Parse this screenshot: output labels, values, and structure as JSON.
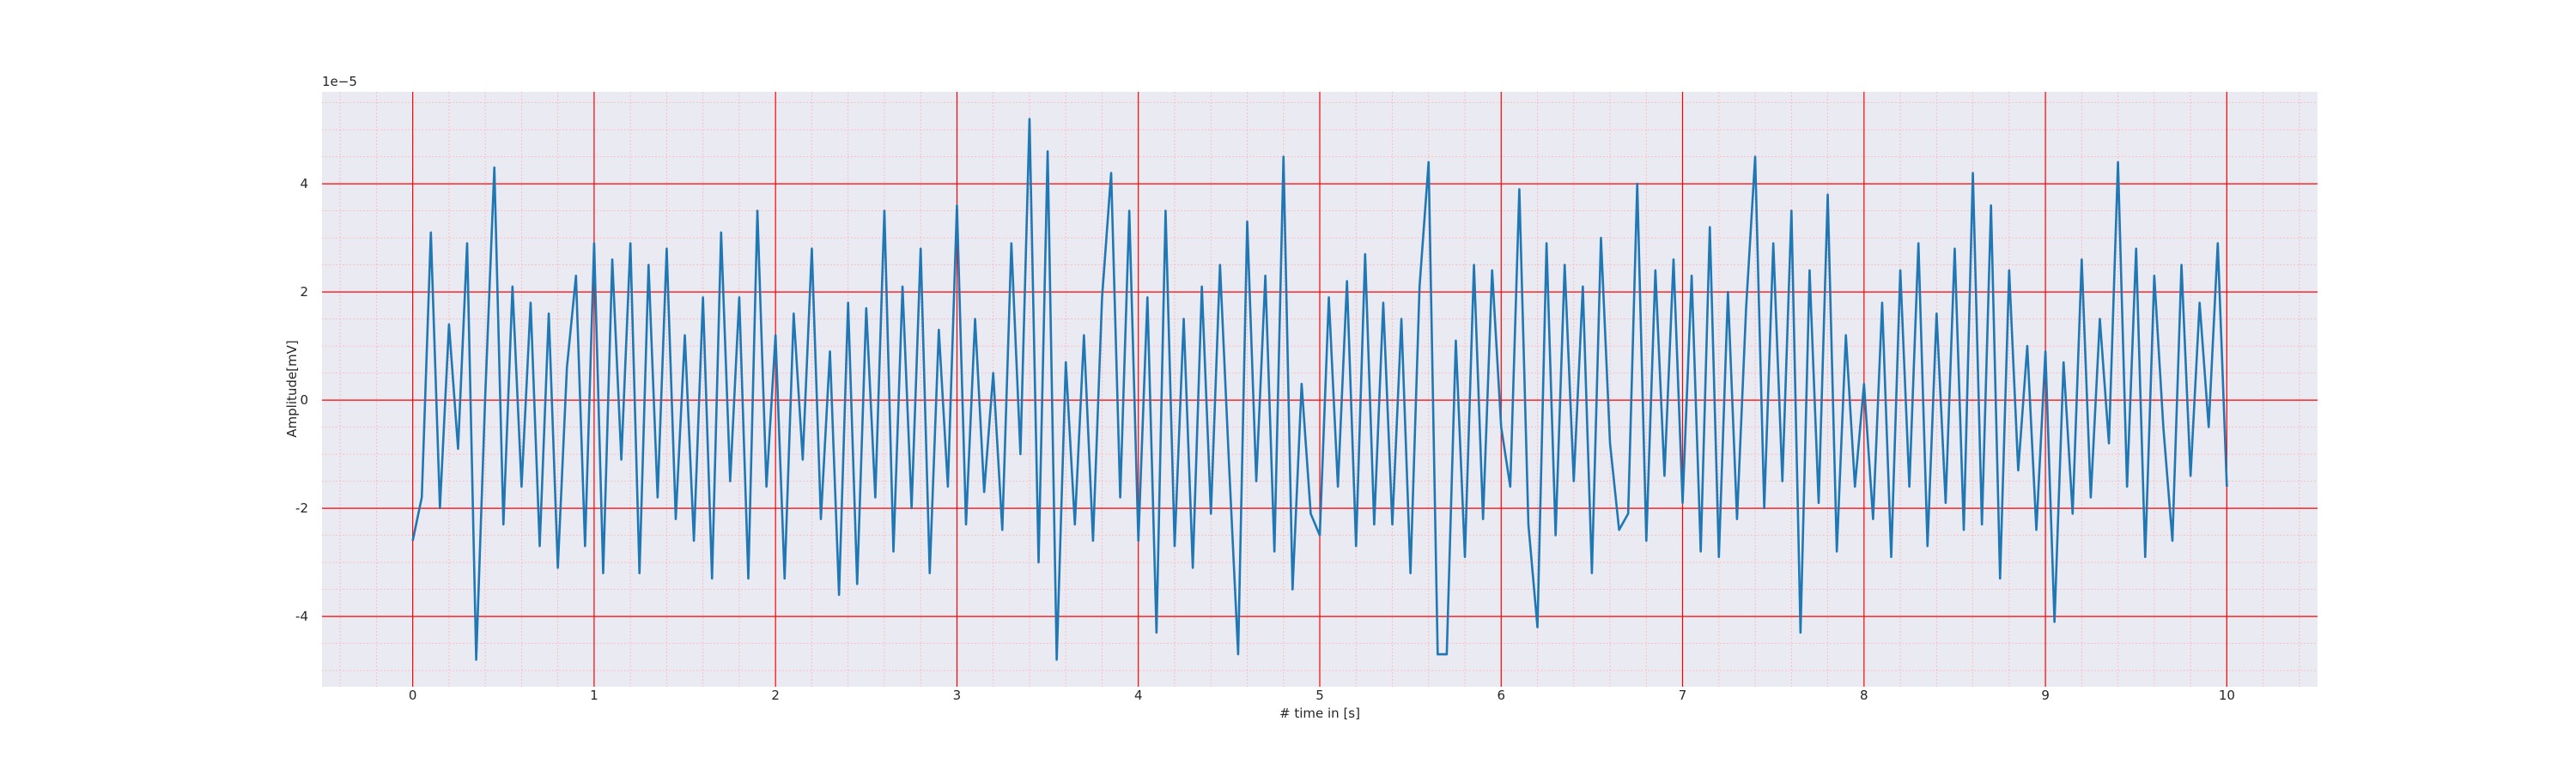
{
  "chart_data": {
    "type": "line",
    "xlabel": "# time in [s]",
    "ylabel": "Amplitude[mV]",
    "y_offset_label": "1e−5",
    "color": "#1f77b4",
    "grid": true,
    "grid_color": "#ff0000",
    "minor_grid_color": "#ffb3b3",
    "background": "#eaeaf2",
    "xlim": [
      -0.5,
      10.5
    ],
    "ylim": [
      -5.3,
      5.7
    ],
    "xticks": [
      0,
      1,
      2,
      3,
      4,
      5,
      6,
      7,
      8,
      9,
      10
    ],
    "yticks": [
      -4,
      -2,
      0,
      2,
      4
    ],
    "xminorticks": [
      -0.4,
      -0.2,
      0.2,
      0.4,
      0.6,
      0.8,
      1.2,
      1.4,
      1.6,
      1.8,
      2.2,
      2.4,
      2.6,
      2.8,
      3.2,
      3.4,
      3.6,
      3.8,
      4.2,
      4.4,
      4.6,
      4.8,
      5.2,
      5.4,
      5.6,
      5.8,
      6.2,
      6.4,
      6.6,
      6.8,
      7.2,
      7.4,
      7.6,
      7.8,
      8.2,
      8.4,
      8.6,
      8.8,
      9.2,
      9.4,
      9.6,
      9.8,
      10.2,
      10.4
    ],
    "yminorticks": [
      -5,
      -4.5,
      -3.5,
      -3,
      -2.5,
      -1.5,
      -1,
      -0.5,
      0.5,
      1,
      1.5,
      2.5,
      3,
      3.5,
      4.5,
      5,
      5.5
    ],
    "x": [
      0,
      0.05,
      0.1,
      0.15,
      0.2,
      0.25,
      0.3,
      0.35,
      0.4,
      0.45,
      0.5,
      0.55,
      0.6,
      0.65,
      0.7,
      0.75,
      0.8,
      0.85,
      0.9,
      0.95,
      1,
      1.05,
      1.1,
      1.15,
      1.2,
      1.25,
      1.3,
      1.35,
      1.4,
      1.45,
      1.5,
      1.55,
      1.6,
      1.65,
      1.7,
      1.75,
      1.8,
      1.85,
      1.9,
      1.95,
      2,
      2.05,
      2.1,
      2.15,
      2.2,
      2.25,
      2.3,
      2.35,
      2.4,
      2.45,
      2.5,
      2.55,
      2.6,
      2.65,
      2.7,
      2.75,
      2.8,
      2.85,
      2.9,
      2.95,
      3,
      3.05,
      3.1,
      3.15,
      3.2,
      3.25,
      3.3,
      3.35,
      3.4,
      3.45,
      3.5,
      3.55,
      3.6,
      3.65,
      3.7,
      3.75,
      3.8,
      3.85,
      3.9,
      3.95,
      4,
      4.05,
      4.1,
      4.15,
      4.2,
      4.25,
      4.3,
      4.35,
      4.4,
      4.45,
      4.5,
      4.55,
      4.6,
      4.65,
      4.7,
      4.75,
      4.8,
      4.85,
      4.9,
      4.95,
      5,
      5.05,
      5.1,
      5.15,
      5.2,
      5.25,
      5.3,
      5.35,
      5.4,
      5.45,
      5.5,
      5.55,
      5.6,
      5.65,
      5.7,
      5.75,
      5.8,
      5.85,
      5.9,
      5.95,
      6,
      6.05,
      6.1,
      6.15,
      6.2,
      6.25,
      6.3,
      6.35,
      6.4,
      6.45,
      6.5,
      6.55,
      6.6,
      6.65,
      6.7,
      6.75,
      6.8,
      6.85,
      6.9,
      6.95,
      7,
      7.05,
      7.1,
      7.15,
      7.2,
      7.25,
      7.3,
      7.35,
      7.4,
      7.45,
      7.5,
      7.55,
      7.6,
      7.65,
      7.7,
      7.75,
      7.8,
      7.85,
      7.9,
      7.95,
      8,
      8.05,
      8.1,
      8.15,
      8.2,
      8.25,
      8.3,
      8.35,
      8.4,
      8.45,
      8.5,
      8.55,
      8.6,
      8.65,
      8.7,
      8.75,
      8.8,
      8.85,
      8.9,
      8.95,
      9,
      9.05,
      9.1,
      9.15,
      9.2,
      9.25,
      9.3,
      9.35,
      9.4,
      9.45,
      9.5,
      9.55,
      9.6,
      9.65,
      9.7,
      9.75,
      9.8,
      9.85,
      9.9,
      9.95,
      10
    ],
    "values": [
      -2.6,
      -1.8,
      3.1,
      -2.0,
      1.4,
      -0.9,
      2.9,
      -4.8,
      0.1,
      4.3,
      -2.3,
      2.1,
      -1.6,
      1.8,
      -2.7,
      1.6,
      -3.1,
      0.6,
      2.3,
      -2.7,
      2.9,
      -3.2,
      2.6,
      -1.1,
      2.9,
      -3.2,
      2.5,
      -1.8,
      2.8,
      -2.2,
      1.2,
      -2.6,
      1.9,
      -3.3,
      3.1,
      -1.5,
      1.9,
      -3.3,
      3.5,
      -1.6,
      1.2,
      -3.3,
      1.6,
      -1.1,
      2.8,
      -2.2,
      0.9,
      -3.6,
      1.8,
      -3.4,
      1.7,
      -1.8,
      3.5,
      -2.8,
      2.1,
      -2.0,
      2.8,
      -3.2,
      1.3,
      -1.6,
      3.6,
      -2.3,
      1.5,
      -1.7,
      0.5,
      -2.4,
      2.9,
      -1.0,
      5.2,
      -3.0,
      4.6,
      -4.8,
      0.7,
      -2.3,
      1.2,
      -2.6,
      1.9,
      4.2,
      -1.8,
      3.5,
      -2.6,
      1.9,
      -4.3,
      3.5,
      -2.7,
      1.5,
      -3.1,
      2.1,
      -2.1,
      2.5,
      -1.2,
      -4.7,
      3.3,
      -1.5,
      2.3,
      -2.8,
      4.5,
      -3.5,
      0.3,
      -2.1,
      -2.5,
      1.9,
      -1.6,
      2.2,
      -2.7,
      2.7,
      -2.3,
      1.8,
      -2.3,
      1.5,
      -3.2,
      2.1,
      4.4,
      -4.7,
      -4.7,
      1.1,
      -2.9,
      2.5,
      -2.2,
      2.4,
      -0.5,
      -1.6,
      3.9,
      -2.3,
      -4.2,
      2.9,
      -2.5,
      2.5,
      -1.5,
      2.1,
      -3.2,
      3.0,
      -0.8,
      -2.4,
      -2.1,
      4.0,
      -2.6,
      2.4,
      -1.4,
      2.6,
      -1.9,
      2.3,
      -2.8,
      3.2,
      -2.9,
      2.0,
      -2.2,
      1.7,
      4.5,
      -2.0,
      2.9,
      -1.5,
      3.5,
      -4.3,
      2.4,
      -1.9,
      3.8,
      -2.8,
      1.2,
      -1.6,
      0.3,
      -2.2,
      1.8,
      -2.9,
      2.4,
      -1.6,
      2.9,
      -2.7,
      1.6,
      -1.9,
      2.8,
      -2.4,
      4.2,
      -2.3,
      3.6,
      -3.3,
      2.4,
      -1.3,
      1.0,
      -2.4,
      0.9,
      -4.1,
      0.7,
      -2.1,
      2.6,
      -1.8,
      1.5,
      -0.8,
      4.4,
      -1.6,
      2.8,
      -2.9,
      2.3,
      -0.5,
      -2.6,
      2.5,
      -1.4,
      1.8,
      -0.5,
      2.9,
      -1.6
    ]
  }
}
